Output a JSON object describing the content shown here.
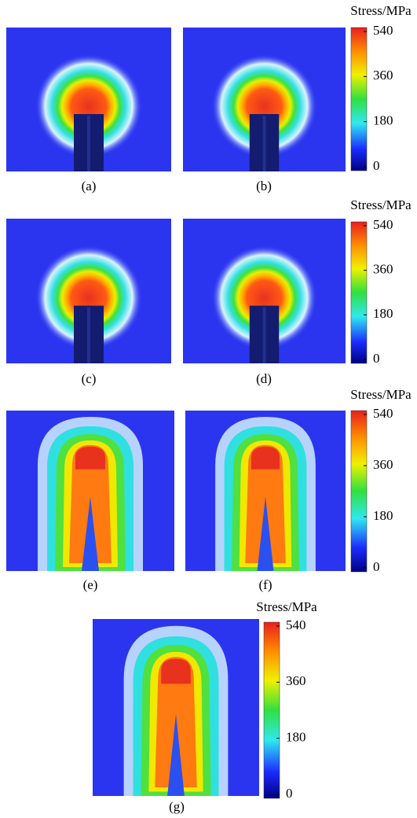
{
  "panels": [
    {
      "label": "(a)"
    },
    {
      "label": "(b)"
    },
    {
      "label": "(c)"
    },
    {
      "label": "(d)"
    },
    {
      "label": "(e)"
    },
    {
      "label": "(f)"
    },
    {
      "label": "(g)"
    }
  ],
  "colorbars": [
    {
      "title": "Stress/MPa",
      "ticks": [
        0,
        180,
        360,
        540
      ]
    },
    {
      "title": "Stress/MPa",
      "ticks": [
        0,
        180,
        360,
        540
      ]
    },
    {
      "title": "Stress/MPa",
      "ticks": [
        0,
        180,
        360,
        540
      ]
    },
    {
      "title": "Stress/MPa",
      "ticks": [
        0,
        180,
        360,
        540
      ]
    }
  ]
}
